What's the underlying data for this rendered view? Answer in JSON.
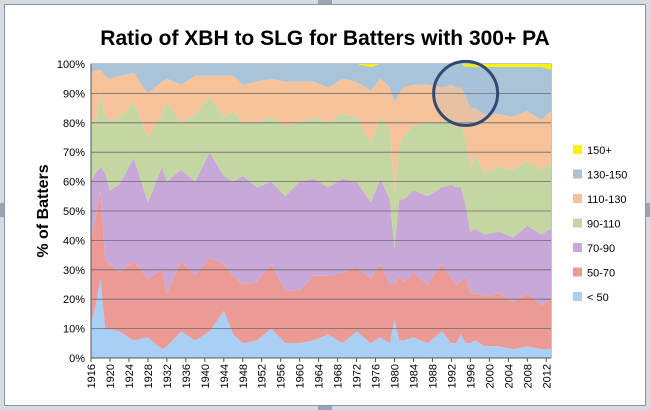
{
  "chart_data": {
    "type": "area",
    "stacked": true,
    "normalized_percent": true,
    "title": "Ratio of XBH to SLG for Batters with 300+ PA",
    "ylabel": "% of Batters",
    "xlabel": "",
    "ylim": [
      0,
      100
    ],
    "y_ticks": [
      "0%",
      "10%",
      "20%",
      "30%",
      "40%",
      "50%",
      "60%",
      "70%",
      "80%",
      "90%",
      "100%"
    ],
    "x_ticks": [
      "1916",
      "1920",
      "1924",
      "1928",
      "1932",
      "1936",
      "1940",
      "1944",
      "1948",
      "1952",
      "1956",
      "1960",
      "1964",
      "1968",
      "1972",
      "1976",
      "1980",
      "1984",
      "1988",
      "1992",
      "1996",
      "2000",
      "2004",
      "2008",
      "2012"
    ],
    "x_range": [
      1916,
      2013
    ],
    "grid": true,
    "legend_position": "right",
    "x": [
      1916,
      1917,
      1918,
      1919,
      1920,
      1922,
      1925,
      1928,
      1931,
      1932,
      1935,
      1938,
      1941,
      1944,
      1946,
      1948,
      1951,
      1954,
      1957,
      1960,
      1963,
      1966,
      1969,
      1972,
      1975,
      1977,
      1979,
      1980,
      1981,
      1982,
      1984,
      1987,
      1990,
      1992,
      1993,
      1994,
      1995,
      1996,
      1997,
      1999,
      2002,
      2005,
      2008,
      2011,
      2013
    ],
    "series": [
      {
        "name": "< 50",
        "color": "#a9cff5",
        "values": [
          12,
          18,
          27,
          10,
          10,
          9,
          6,
          7,
          3,
          4,
          9,
          6,
          9,
          16,
          8,
          5,
          6,
          10,
          5,
          5,
          6,
          8,
          5,
          9,
          5,
          7,
          5,
          13,
          6,
          6,
          7,
          5,
          9,
          5,
          5,
          8,
          5,
          5,
          6,
          4,
          4,
          3,
          4,
          3,
          3
        ]
      },
      {
        "name": "50-70",
        "color": "#ec9a96",
        "values": [
          28,
          30,
          30,
          23,
          22,
          20,
          27,
          20,
          27,
          18,
          24,
          22,
          25,
          16,
          20,
          20,
          20,
          22,
          18,
          18,
          22,
          20,
          24,
          22,
          22,
          25,
          20,
          12,
          22,
          20,
          22,
          20,
          23,
          22,
          20,
          18,
          23,
          17,
          16,
          17,
          18,
          16,
          18,
          15,
          17
        ]
      },
      {
        "name": "70-90",
        "color": "#c8a8d8",
        "values": [
          20,
          15,
          8,
          30,
          25,
          30,
          35,
          26,
          35,
          38,
          31,
          32,
          36,
          30,
          32,
          37,
          32,
          28,
          32,
          37,
          33,
          30,
          32,
          29,
          26,
          29,
          29,
          12,
          26,
          28,
          28,
          30,
          26,
          32,
          33,
          32,
          24,
          21,
          22,
          21,
          21,
          22,
          23,
          24,
          24
        ]
      },
      {
        "name": "90-110",
        "color": "#c4d6a2",
        "values": [
          20,
          17,
          25,
          19,
          24,
          23,
          19,
          22,
          18,
          27,
          16,
          23,
          19,
          20,
          24,
          18,
          22,
          22,
          24,
          20,
          21,
          22,
          22,
          22,
          20,
          21,
          24,
          20,
          18,
          22,
          22,
          25,
          22,
          22,
          20,
          22,
          23,
          22,
          25,
          21,
          22,
          23,
          22,
          22,
          22
        ]
      },
      {
        "name": "110-130",
        "color": "#f5c29a",
        "values": [
          17,
          18,
          8,
          14,
          14,
          14,
          10,
          15,
          11,
          8,
          13,
          13,
          7,
          14,
          12,
          13,
          14,
          13,
          15,
          14,
          12,
          12,
          12,
          12,
          18,
          13,
          14,
          30,
          18,
          16,
          14,
          13,
          12,
          12,
          14,
          12,
          14,
          20,
          16,
          20,
          18,
          18,
          17,
          17,
          18
        ]
      },
      {
        "name": "130-150",
        "color": "#a9c3d8",
        "values": [
          3,
          2,
          2,
          4,
          5,
          4,
          3,
          10,
          6,
          5,
          7,
          4,
          4,
          4,
          4,
          7,
          6,
          5,
          6,
          6,
          6,
          8,
          5,
          6,
          8,
          5,
          8,
          13,
          10,
          8,
          7,
          7,
          8,
          7,
          8,
          8,
          10,
          14,
          14,
          16,
          16,
          17,
          15,
          18,
          14
        ]
      },
      {
        "name": "150+",
        "color": "#fff200",
        "values": [
          0,
          0,
          0,
          0,
          0,
          0,
          0,
          0,
          0,
          0,
          0,
          0,
          0,
          0,
          0,
          0,
          0,
          0,
          0,
          0,
          0,
          0,
          0,
          0,
          1,
          0,
          0,
          0,
          0,
          0,
          0,
          0,
          0,
          0,
          0,
          0,
          1,
          1,
          1,
          1,
          1,
          1,
          1,
          1,
          2
        ]
      }
    ],
    "annotation": {
      "shape": "circle",
      "x": 1995,
      "y": 90,
      "color": "#2e4a72"
    }
  }
}
